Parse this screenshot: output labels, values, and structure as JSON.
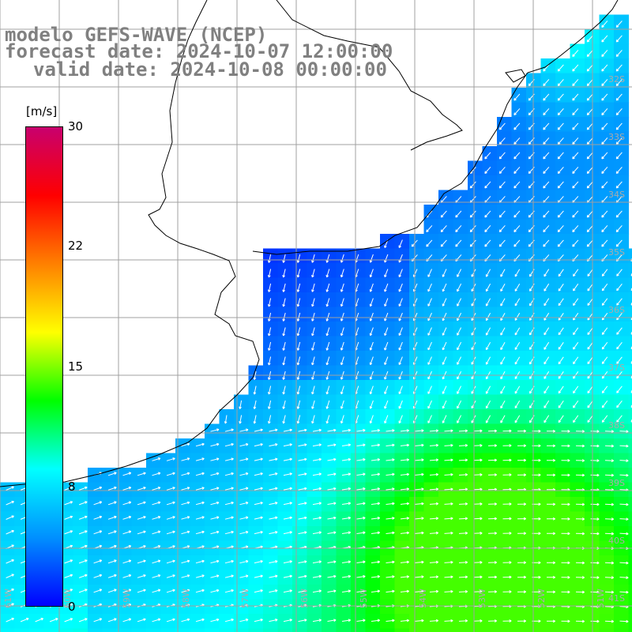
{
  "title": {
    "line1": "modelo GEFS-WAVE (NCEP)",
    "line2": "forecast date: 2024-10-07 12:00:00",
    "line3": "valid date: 2024-10-08 00:00:00"
  },
  "colorbar": {
    "units": "[m/s]",
    "ticks": [
      "30",
      "22",
      "15",
      "8",
      "0"
    ],
    "scale": [
      0,
      30
    ],
    "colors": [
      "#0000ff",
      "#0090ff",
      "#00ffff",
      "#00ff00",
      "#ffff00",
      "#ff8000",
      "#ff0000",
      "#c8006e"
    ]
  },
  "graticule": {
    "lon_labels": [
      "61W",
      "60W",
      "59W",
      "58W",
      "57W",
      "56W",
      "55W",
      "54W",
      "53W",
      "52W",
      "51W"
    ],
    "lat_labels": [
      "32S",
      "33S",
      "34S",
      "35S",
      "36S",
      "37S",
      "38S",
      "39S",
      "40S",
      "41S"
    ]
  },
  "field": {
    "variable": "wind speed and direction",
    "unit": "m/s"
  },
  "colors": {
    "land": "#ffffff",
    "coast": "#000000",
    "grid": "#a0a0a0",
    "arrows": "#ffffff",
    "title_text": "#808080"
  }
}
